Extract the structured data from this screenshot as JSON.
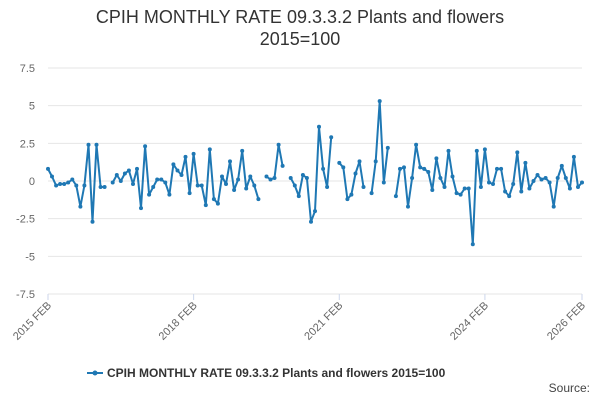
{
  "title_line1": "CPIH MONTHLY RATE 09.3.3.2 Plants and flowers",
  "title_line2": "2015=100",
  "source_label": "Source:",
  "colors": {
    "series": "#1f78b4",
    "grid": "#e6e6e6",
    "axis": "#ccd6eb",
    "text": "#666666"
  },
  "chart_data": {
    "type": "line",
    "title": "CPIH MONTHLY RATE 09.3.3.2 Plants and flowers 2015=100",
    "ylim": [
      -7.5,
      7.5
    ],
    "yticks": [
      7.5,
      5,
      2.5,
      0,
      -2.5,
      -5,
      -7.5
    ],
    "ytick_labels": [
      "7.5",
      "5",
      "2.5",
      "0",
      "-2.5",
      "-5",
      "-7.5"
    ],
    "x_start": "2015 FEB",
    "x_end": "2026 FEB",
    "xticks": [
      "2015 FEB",
      "2018 FEB",
      "2021 FEB",
      "2024 FEB",
      "2026 FEB"
    ],
    "grid": true,
    "legend_position": "bottom",
    "series": [
      {
        "name": "CPIH MONTHLY RATE 09.3.3.2 Plants and flowers 2015=100",
        "x": [
          "2015 FEB",
          "2015 MAR",
          "2015 APR",
          "2015 MAY",
          "2015 JUN",
          "2015 JUL",
          "2015 AUG",
          "2015 SEP",
          "2015 OCT",
          "2015 NOV",
          "2015 DEC",
          "2016 JAN",
          "2016 FEB",
          "2016 MAR",
          "2016 APR",
          "2016 MAY",
          "2016 JUN",
          "2016 JUL",
          "2016 AUG",
          "2016 SEP",
          "2016 OCT",
          "2016 NOV",
          "2016 DEC",
          "2017 JAN",
          "2017 FEB",
          "2017 MAR",
          "2017 APR",
          "2017 MAY",
          "2017 JUN",
          "2017 JUL",
          "2017 AUG",
          "2017 SEP",
          "2017 OCT",
          "2017 NOV",
          "2017 DEC",
          "2018 JAN",
          "2018 FEB",
          "2018 MAR",
          "2018 APR",
          "2018 MAY",
          "2018 JUN",
          "2018 JUL",
          "2018 AUG",
          "2018 SEP",
          "2018 OCT",
          "2018 NOV",
          "2018 DEC",
          "2019 JAN",
          "2019 FEB",
          "2019 MAR",
          "2019 APR",
          "2019 MAY",
          "2019 JUN",
          "2019 JUL",
          "2019 AUG",
          "2019 SEP",
          "2019 OCT",
          "2019 NOV",
          "2019 DEC",
          "2020 JAN",
          "2020 FEB",
          "2020 MAR",
          "2020 APR",
          "2020 MAY",
          "2020 JUN",
          "2020 JUL",
          "2020 AUG",
          "2020 SEP",
          "2020 OCT",
          "2020 NOV",
          "2020 DEC",
          "2021 JAN",
          "2021 FEB",
          "2021 MAR",
          "2021 APR",
          "2021 MAY",
          "2021 JUN",
          "2021 JUL",
          "2021 AUG",
          "2021 SEP",
          "2021 OCT",
          "2021 NOV",
          "2021 DEC",
          "2022 JAN",
          "2022 FEB",
          "2022 MAR",
          "2022 APR",
          "2022 MAY",
          "2022 JUN",
          "2022 JUL",
          "2022 AUG",
          "2022 SEP",
          "2022 OCT",
          "2022 NOV",
          "2022 DEC",
          "2023 JAN",
          "2023 FEB",
          "2023 MAR",
          "2023 APR",
          "2023 MAY",
          "2023 JUN",
          "2023 JUL",
          "2023 AUG",
          "2023 SEP",
          "2023 OCT",
          "2023 NOV",
          "2023 DEC",
          "2024 JAN",
          "2024 FEB",
          "2024 MAR",
          "2024 APR",
          "2024 MAY",
          "2024 JUN",
          "2024 JUL",
          "2024 AUG",
          "2024 SEP",
          "2024 OCT",
          "2024 NOV",
          "2024 DEC",
          "2025 JAN",
          "2025 FEB",
          "2025 MAR",
          "2025 APR",
          "2025 MAY",
          "2025 JUN",
          "2025 JUL",
          "2025 AUG",
          "2025 SEP",
          "2025 OCT",
          "2025 NOV",
          "2025 DEC",
          "2026 JAN",
          "2026 FEB"
        ],
        "values": [
          0.8,
          0.3,
          -0.3,
          -0.2,
          -0.2,
          -0.1,
          0.1,
          -0.3,
          -1.7,
          -0.3,
          2.4,
          -2.7,
          2.4,
          -0.4,
          -0.4,
          null,
          -0.1,
          0.4,
          0.0,
          0.5,
          0.7,
          -0.2,
          0.8,
          -1.8,
          2.3,
          -0.9,
          -0.4,
          0.1,
          0.1,
          -0.1,
          -0.9,
          1.1,
          0.7,
          0.4,
          1.6,
          -0.8,
          1.8,
          -0.3,
          -0.3,
          -1.6,
          2.1,
          -1.2,
          -1.5,
          0.3,
          -0.2,
          1.3,
          -0.6,
          0.1,
          2.0,
          -0.5,
          0.3,
          -0.3,
          -1.2,
          null,
          0.3,
          0.1,
          0.2,
          2.4,
          1.0,
          null,
          0.2,
          -0.3,
          -1.0,
          0.4,
          0.2,
          -2.7,
          -2.0,
          3.6,
          0.8,
          -0.4,
          2.9,
          null,
          1.2,
          0.9,
          -1.2,
          -0.9,
          0.5,
          1.3,
          -0.4,
          null,
          -0.8,
          1.3,
          5.3,
          -0.1,
          2.2,
          null,
          -1.0,
          0.8,
          0.9,
          -1.7,
          0.2,
          2.4,
          0.9,
          0.8,
          0.6,
          -0.6,
          1.5,
          0.2,
          -0.4,
          2.0,
          0.3,
          -0.8,
          -0.9,
          -0.5,
          -0.5,
          -4.2,
          2.0,
          -0.4,
          2.1,
          -0.1,
          -0.2,
          0.8,
          0.8,
          -0.7,
          -1.0,
          -0.2,
          1.9,
          -0.7,
          1.2,
          -0.5,
          0.0,
          0.4,
          0.1,
          0.2,
          -0.1,
          -1.7,
          0.2,
          1.0,
          0.2,
          -0.5,
          1.6,
          -0.4,
          -0.1
        ]
      }
    ]
  }
}
